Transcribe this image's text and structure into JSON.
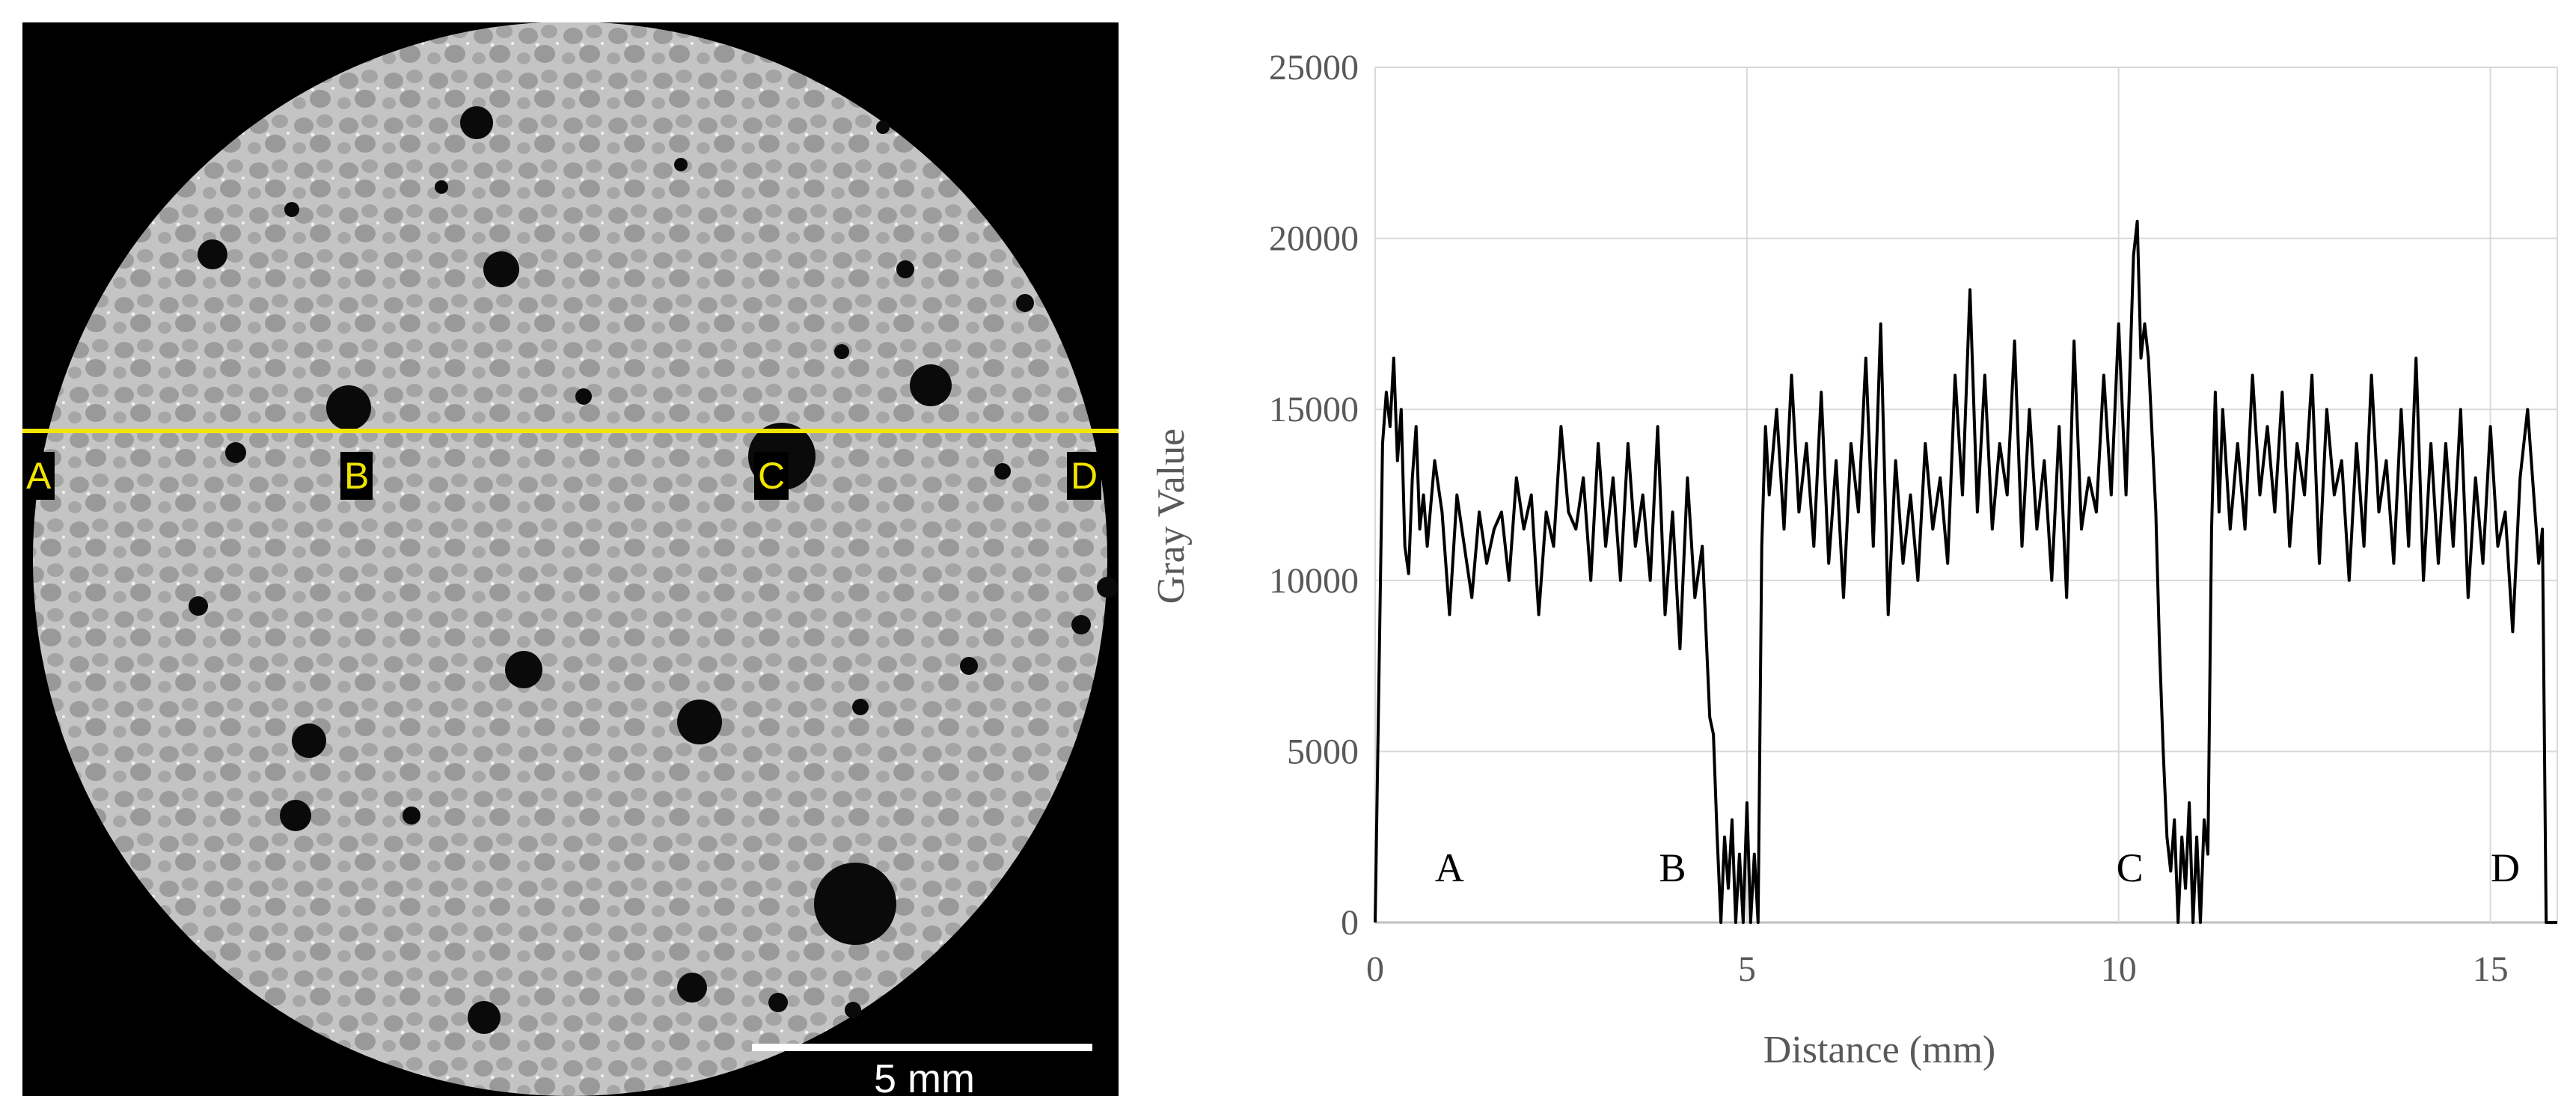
{
  "ct_image": {
    "scale_bar_label": "5 mm",
    "markers": [
      "A",
      "B",
      "C",
      "D"
    ],
    "line_color": "#f0e400"
  },
  "chart_data": {
    "type": "line",
    "title": "",
    "xlabel": "Distance (mm)",
    "ylabel": "Gray Value",
    "xlim": [
      0,
      15.9
    ],
    "ylim": [
      0,
      25000
    ],
    "x_ticks": [
      0,
      5,
      10,
      15
    ],
    "y_ticks": [
      0,
      5000,
      10000,
      15000,
      20000,
      25000
    ],
    "grid": true,
    "annotations": [
      {
        "label": "A",
        "x": 1.0,
        "y": 1200
      },
      {
        "label": "B",
        "x": 4.0,
        "y": 1200
      },
      {
        "label": "C",
        "x": 10.15,
        "y": 1200
      },
      {
        "label": "D",
        "x": 15.2,
        "y": 1200
      }
    ],
    "series": [
      {
        "x": [
          0.0,
          0.1,
          0.15,
          0.2,
          0.25,
          0.3,
          0.35,
          0.4,
          0.45,
          0.5,
          0.55,
          0.6,
          0.65,
          0.7,
          0.8,
          0.9,
          1.0,
          1.1,
          1.2,
          1.3,
          1.4,
          1.5,
          1.6,
          1.7,
          1.8,
          1.9,
          2.0,
          2.1,
          2.2,
          2.3,
          2.4,
          2.5,
          2.6,
          2.7,
          2.8,
          2.9,
          3.0,
          3.1,
          3.2,
          3.3,
          3.4,
          3.5,
          3.6,
          3.7,
          3.8,
          3.9,
          4.0,
          4.1,
          4.2,
          4.3,
          4.4,
          4.5,
          4.55,
          4.6,
          4.65,
          4.7,
          4.75,
          4.8,
          4.85,
          4.9,
          4.95,
          5.0,
          5.05,
          5.1,
          5.15,
          5.2,
          5.25,
          5.3,
          5.4,
          5.5,
          5.6,
          5.7,
          5.8,
          5.9,
          6.0,
          6.1,
          6.2,
          6.3,
          6.4,
          6.5,
          6.6,
          6.7,
          6.8,
          6.9,
          7.0,
          7.1,
          7.2,
          7.3,
          7.4,
          7.5,
          7.6,
          7.7,
          7.8,
          7.9,
          8.0,
          8.1,
          8.2,
          8.3,
          8.4,
          8.5,
          8.6,
          8.7,
          8.8,
          8.9,
          9.0,
          9.1,
          9.2,
          9.3,
          9.4,
          9.5,
          9.6,
          9.7,
          9.8,
          9.9,
          10.0,
          10.1,
          10.2,
          10.25,
          10.3,
          10.35,
          10.4,
          10.5,
          10.55,
          10.6,
          10.65,
          10.7,
          10.75,
          10.8,
          10.85,
          10.9,
          10.95,
          11.0,
          11.05,
          11.1,
          11.15,
          11.2,
          11.25,
          11.3,
          11.35,
          11.4,
          11.5,
          11.6,
          11.7,
          11.8,
          11.9,
          12.0,
          12.1,
          12.2,
          12.3,
          12.4,
          12.5,
          12.6,
          12.7,
          12.8,
          12.9,
          13.0,
          13.1,
          13.2,
          13.3,
          13.4,
          13.5,
          13.6,
          13.7,
          13.8,
          13.9,
          14.0,
          14.1,
          14.2,
          14.3,
          14.4,
          14.5,
          14.6,
          14.7,
          14.8,
          14.9,
          15.0,
          15.1,
          15.2,
          15.3,
          15.4,
          15.5,
          15.6,
          15.65,
          15.7,
          15.75,
          15.9
        ],
        "values": [
          0,
          14000,
          15500,
          14500,
          16500,
          13500,
          15000,
          11000,
          10200,
          13000,
          14500,
          11500,
          12500,
          11000,
          13500,
          12000,
          9000,
          12500,
          11000,
          9500,
          12000,
          10500,
          11500,
          12000,
          10000,
          13000,
          11500,
          12500,
          9000,
          12000,
          11000,
          14500,
          12000,
          11500,
          13000,
          10000,
          14000,
          11000,
          13000,
          10000,
          14000,
          11000,
          12500,
          10000,
          14500,
          9000,
          12000,
          8000,
          13000,
          9500,
          11000,
          6000,
          5500,
          2500,
          0,
          2500,
          1000,
          3000,
          0,
          2000,
          0,
          3500,
          0,
          2000,
          0,
          11000,
          14500,
          12500,
          15000,
          11500,
          16000,
          12000,
          14000,
          11000,
          15500,
          10500,
          13500,
          9500,
          14000,
          12000,
          16500,
          11000,
          17500,
          9000,
          13500,
          10500,
          12500,
          10000,
          14000,
          11500,
          13000,
          10500,
          16000,
          12500,
          18500,
          12000,
          16000,
          11500,
          14000,
          12500,
          17000,
          11000,
          15000,
          11500,
          13500,
          10000,
          14500,
          9500,
          17000,
          11500,
          13000,
          12000,
          16000,
          12500,
          17500,
          12500,
          19500,
          20500,
          16500,
          17500,
          16500,
          12000,
          8000,
          5000,
          2500,
          1500,
          3000,
          0,
          2500,
          1000,
          3500,
          0,
          2500,
          0,
          3000,
          2000,
          11500,
          15500,
          12000,
          15000,
          11500,
          14000,
          11500,
          16000,
          12500,
          14500,
          12000,
          15500,
          11000,
          14000,
          12500,
          16000,
          10500,
          15000,
          12500,
          13500,
          10000,
          14000,
          11000,
          16000,
          12000,
          13500,
          10500,
          15000,
          11000,
          16500,
          10000,
          14000,
          10500,
          14000,
          11000,
          15000,
          9500,
          13000,
          10500,
          14500,
          11000,
          12000,
          8500,
          13000,
          15000,
          12000,
          10500,
          11500,
          0,
          0
        ]
      }
    ]
  }
}
